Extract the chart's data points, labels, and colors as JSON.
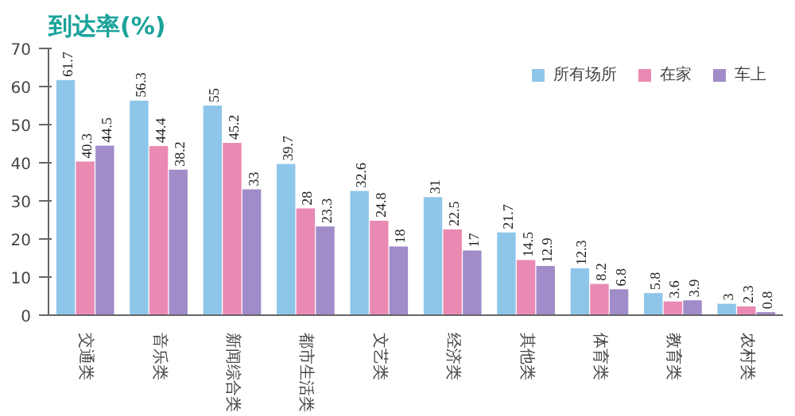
{
  "chart_data": {
    "type": "bar",
    "title": "到达率(%)",
    "categories": [
      "交通类",
      "音乐类",
      "新闻综合类",
      "都市生活类",
      "文艺类",
      "经济类",
      "其他类",
      "体育类",
      "教育类",
      "农村类"
    ],
    "series": [
      {
        "name": "所有场所",
        "color": "#8ec6ea",
        "values": [
          61.7,
          56.3,
          55,
          39.7,
          32.6,
          31,
          21.7,
          12.3,
          5.8,
          3
        ]
      },
      {
        "name": "在家",
        "color": "#ea8ab2",
        "values": [
          40.3,
          44.4,
          45.2,
          28,
          24.8,
          22.5,
          14.5,
          8.2,
          3.6,
          2.3
        ]
      },
      {
        "name": "车上",
        "color": "#a08cc8",
        "values": [
          44.5,
          38.2,
          33,
          23.3,
          18,
          17,
          12.9,
          6.8,
          3.9,
          0.8
        ]
      }
    ],
    "ylim": [
      0,
      70
    ],
    "yticks": [
      0,
      10,
      20,
      30,
      40,
      50,
      60,
      70
    ],
    "data_labels": true,
    "legend": "top right",
    "grid": false
  }
}
